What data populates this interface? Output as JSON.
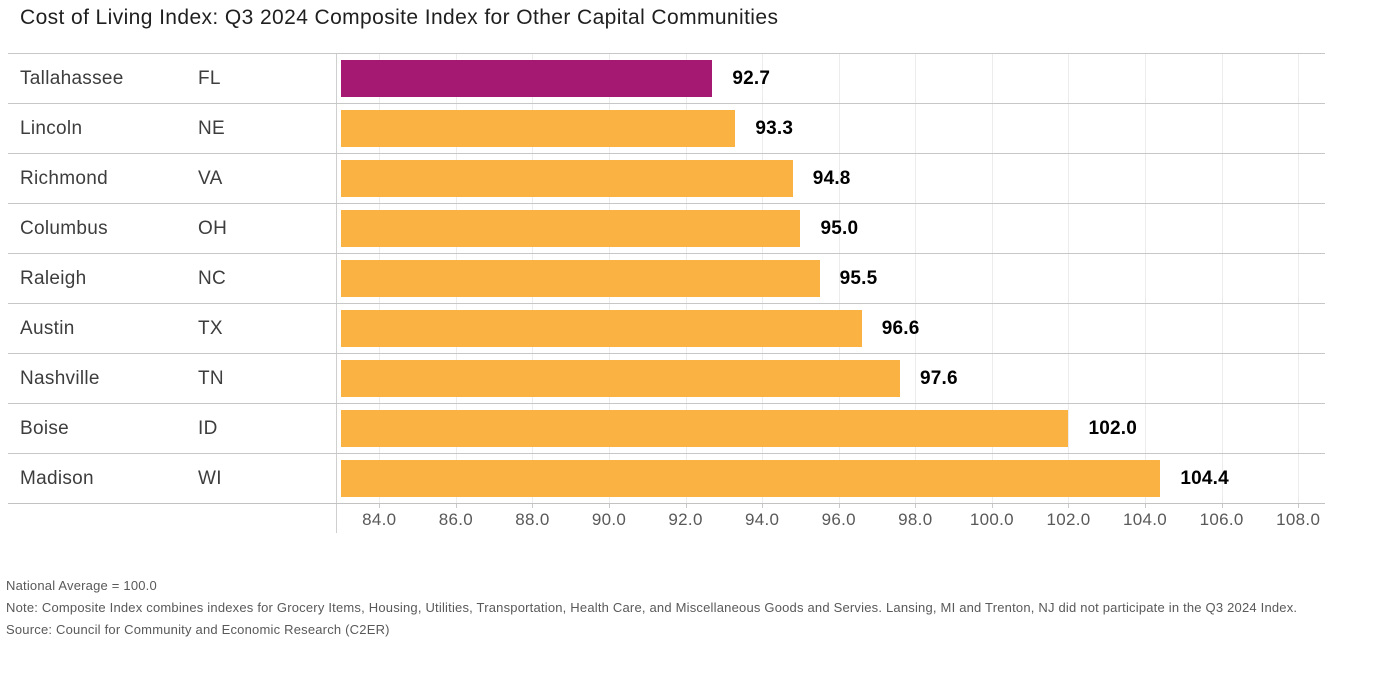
{
  "title": "Cost of Living Index: Q3 2024 Composite Index for Other Capital Communities",
  "chart_data": {
    "type": "bar",
    "orientation": "horizontal",
    "title": "Cost of Living Index: Q3 2024 Composite Index for Other Capital Communities",
    "rows": [
      {
        "city": "Tallahassee",
        "state": "FL",
        "value": 92.7,
        "highlight": true
      },
      {
        "city": "Lincoln",
        "state": "NE",
        "value": 93.3,
        "highlight": false
      },
      {
        "city": "Richmond",
        "state": "VA",
        "value": 94.8,
        "highlight": false
      },
      {
        "city": "Columbus",
        "state": "OH",
        "value": 95.0,
        "highlight": false
      },
      {
        "city": "Raleigh",
        "state": "NC",
        "value": 95.5,
        "highlight": false
      },
      {
        "city": "Austin",
        "state": "TX",
        "value": 96.6,
        "highlight": false
      },
      {
        "city": "Nashville",
        "state": "TN",
        "value": 97.6,
        "highlight": false
      },
      {
        "city": "Boise",
        "state": "ID",
        "value": 102.0,
        "highlight": false
      },
      {
        "city": "Madison",
        "state": "WI",
        "value": 104.4,
        "highlight": false
      }
    ],
    "xlim": [
      83.0,
      108.7
    ],
    "xticks": [
      84.0,
      86.0,
      88.0,
      90.0,
      92.0,
      94.0,
      96.0,
      98.0,
      100.0,
      102.0,
      104.0,
      106.0,
      108.0
    ],
    "tick_label_decimals": 1,
    "grid": "vertical",
    "legend": "none",
    "colors": {
      "bar": "#FAB342",
      "highlight": "#A51972"
    }
  },
  "notes": {
    "national_average": "National Average = 100.0",
    "note": "Note: Composite Index combines indexes for Grocery Items, Housing, Utilities, Transportation, Health Care, and Miscellaneous Goods and Servies. Lansing, MI and Trenton, NJ did not participate in the Q3 2024 Index.",
    "source": "Source: Council for Community and Economic Research (C2ER)"
  }
}
